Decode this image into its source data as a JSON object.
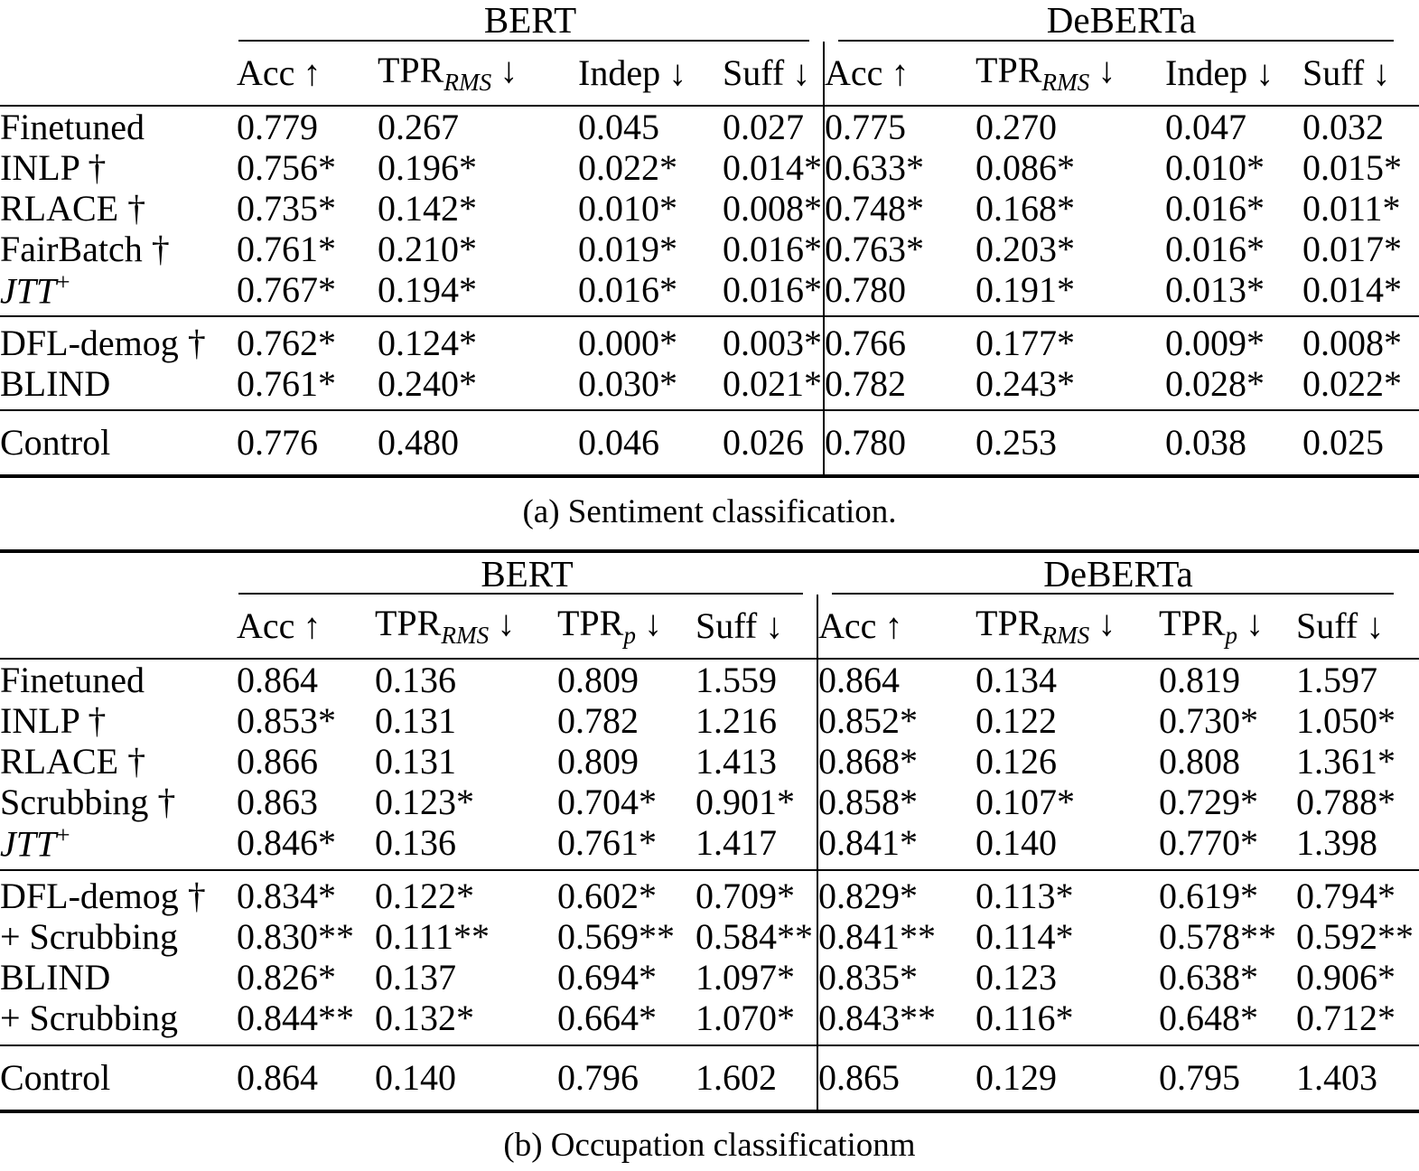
{
  "page": {
    "background": "#ffffff",
    "text_color": "#000000"
  },
  "tables": [
    {
      "name": "sentiment",
      "caption": "(a) Sentiment classification.",
      "group_headers": [
        "BERT",
        "DeBERTa"
      ],
      "columns": [
        {
          "base": "Acc",
          "sub": "",
          "arrow": "↑"
        },
        {
          "base": "TPR",
          "sub": "RMS",
          "arrow": "↓"
        },
        {
          "base": "Indep",
          "sub": "",
          "arrow": "↓"
        },
        {
          "base": "Suff",
          "sub": "",
          "arrow": "↓"
        },
        {
          "base": "Acc",
          "sub": "",
          "arrow": "↑"
        },
        {
          "base": "TPR",
          "sub": "RMS",
          "arrow": "↓"
        },
        {
          "base": "Indep",
          "sub": "",
          "arrow": "↓"
        },
        {
          "base": "Suff",
          "sub": "",
          "arrow": "↓"
        }
      ],
      "groups": [
        {
          "rows": [
            {
              "label": "Finetuned",
              "sup": "",
              "italic": false,
              "cells": [
                "0.779",
                "0.267",
                "0.045",
                "0.027",
                "0.775",
                "0.270",
                "0.047",
                "0.032"
              ]
            },
            {
              "label": "INLP †",
              "sup": "",
              "italic": false,
              "cells": [
                "0.756*",
                "0.196*",
                "0.022*",
                "0.014*",
                "0.633*",
                "0.086*",
                "0.010*",
                "0.015*"
              ]
            },
            {
              "label": "RLACE †",
              "sup": "",
              "italic": false,
              "cells": [
                "0.735*",
                "0.142*",
                "0.010*",
                "0.008*",
                "0.748*",
                "0.168*",
                "0.016*",
                "0.011*"
              ]
            },
            {
              "label": "FairBatch †",
              "sup": "",
              "italic": false,
              "cells": [
                "0.761*",
                "0.210*",
                "0.019*",
                "0.016*",
                "0.763*",
                "0.203*",
                "0.016*",
                "0.017*"
              ]
            },
            {
              "label": "JTT",
              "sup": "+",
              "italic": true,
              "cells": [
                "0.767*",
                "0.194*",
                "0.016*",
                "0.016*",
                "0.780",
                "0.191*",
                "0.013*",
                "0.014*"
              ]
            }
          ]
        },
        {
          "rows": [
            {
              "label": "DFL-demog †",
              "sup": "",
              "italic": false,
              "cells": [
                "0.762*",
                "0.124*",
                "0.000*",
                "0.003*",
                "0.766",
                "0.177*",
                "0.009*",
                "0.008*"
              ]
            },
            {
              "label": "BLIND",
              "sup": "",
              "italic": false,
              "cells": [
                "0.761*",
                "0.240*",
                "0.030*",
                "0.021*",
                "0.782",
                "0.243*",
                "0.028*",
                "0.022*"
              ]
            }
          ]
        },
        {
          "rows": [
            {
              "label": "Control",
              "sup": "",
              "italic": false,
              "cells": [
                "0.776",
                "0.480",
                "0.046",
                "0.026",
                "0.780",
                "0.253",
                "0.038",
                "0.025"
              ]
            }
          ]
        }
      ]
    },
    {
      "name": "occupation",
      "caption": "(b) Occupation classificationm",
      "group_headers": [
        "BERT",
        "DeBERTa"
      ],
      "columns": [
        {
          "base": "Acc",
          "sub": "",
          "arrow": "↑"
        },
        {
          "base": "TPR",
          "sub": "RMS",
          "arrow": "↓"
        },
        {
          "base": "TPR",
          "sub": "p",
          "arrow": "↓"
        },
        {
          "base": "Suff",
          "sub": "",
          "arrow": "↓"
        },
        {
          "base": "Acc",
          "sub": "",
          "arrow": "↑"
        },
        {
          "base": "TPR",
          "sub": "RMS",
          "arrow": "↓"
        },
        {
          "base": "TPR",
          "sub": "p",
          "arrow": "↓"
        },
        {
          "base": "Suff",
          "sub": "",
          "arrow": "↓"
        }
      ],
      "groups": [
        {
          "rows": [
            {
              "label": "Finetuned",
              "sup": "",
              "italic": false,
              "cells": [
                "0.864",
                "0.136",
                "0.809",
                "1.559",
                "0.864",
                "0.134",
                "0.819",
                "1.597"
              ]
            },
            {
              "label": "INLP †",
              "sup": "",
              "italic": false,
              "cells": [
                "0.853*",
                "0.131",
                "0.782",
                "1.216",
                "0.852*",
                "0.122",
                "0.730*",
                "1.050*"
              ]
            },
            {
              "label": "RLACE †",
              "sup": "",
              "italic": false,
              "cells": [
                "0.866",
                "0.131",
                "0.809",
                "1.413",
                "0.868*",
                "0.126",
                "0.808",
                "1.361*"
              ]
            },
            {
              "label": "Scrubbing †",
              "sup": "",
              "italic": false,
              "cells": [
                "0.863",
                "0.123*",
                "0.704*",
                "0.901*",
                "0.858*",
                "0.107*",
                "0.729*",
                "0.788*"
              ]
            },
            {
              "label": "JTT",
              "sup": "+",
              "italic": true,
              "cells": [
                "0.846*",
                "0.136",
                "0.761*",
                "1.417",
                "0.841*",
                "0.140",
                "0.770*",
                "1.398"
              ]
            }
          ]
        },
        {
          "rows": [
            {
              "label": "DFL-demog †",
              "sup": "",
              "italic": false,
              "cells": [
                "0.834*",
                "0.122*",
                "0.602*",
                "0.709*",
                "0.829*",
                "0.113*",
                "0.619*",
                "0.794*"
              ]
            },
            {
              "label": "+ Scrubbing",
              "sup": "",
              "italic": false,
              "cells": [
                "0.830**",
                "0.111**",
                "0.569**",
                "0.584**",
                "0.841**",
                "0.114*",
                "0.578**",
                "0.592**"
              ]
            },
            {
              "label": "BLIND",
              "sup": "",
              "italic": false,
              "cells": [
                "0.826*",
                "0.137",
                "0.694*",
                "1.097*",
                "0.835*",
                "0.123",
                "0.638*",
                "0.906*"
              ]
            },
            {
              "label": "+ Scrubbing",
              "sup": "",
              "italic": false,
              "cells": [
                "0.844**",
                "0.132*",
                "0.664*",
                "1.070*",
                "0.843**",
                "0.116*",
                "0.648*",
                "0.712*"
              ]
            }
          ]
        },
        {
          "rows": [
            {
              "label": "Control",
              "sup": "",
              "italic": false,
              "cells": [
                "0.864",
                "0.140",
                "0.796",
                "1.602",
                "0.865",
                "0.129",
                "0.795",
                "1.403"
              ]
            }
          ]
        }
      ]
    }
  ]
}
